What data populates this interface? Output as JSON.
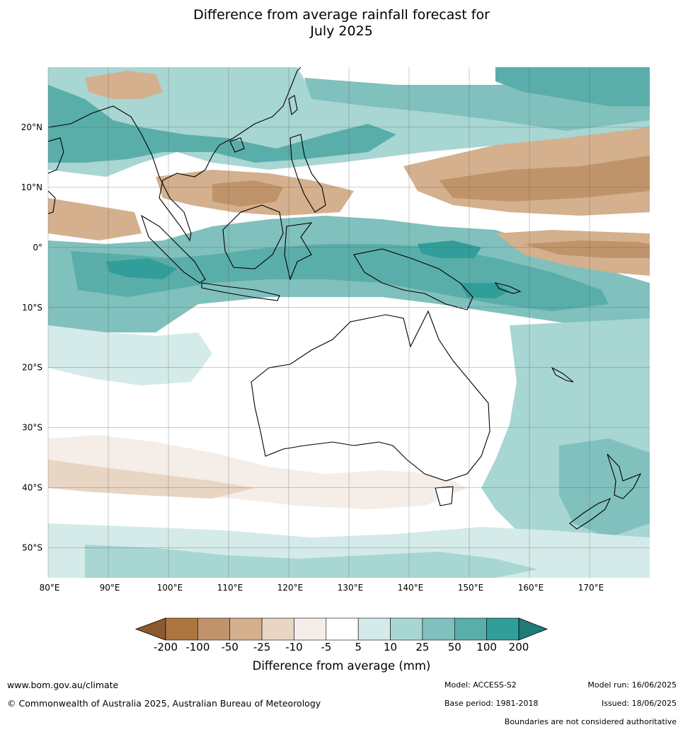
{
  "title": {
    "line1": "Difference from average rainfall forecast for",
    "line2": "July 2025"
  },
  "map": {
    "lat_labels": [
      "20°N",
      "10°N",
      "0°",
      "10°S",
      "20°S",
      "30°S",
      "40°S",
      "50°S"
    ],
    "lon_labels": [
      "80°E",
      "90°E",
      "100°E",
      "110°E",
      "120°E",
      "130°E",
      "140°E",
      "150°E",
      "160°E",
      "170°E"
    ]
  },
  "colorbar": {
    "ticks": [
      "-200",
      "-100",
      "-50",
      "-25",
      "-10",
      "-5",
      "5",
      "10",
      "25",
      "50",
      "100",
      "200"
    ],
    "colors": [
      "#8c5a2c",
      "#ad7540",
      "#c0946a",
      "#d4b08e",
      "#e8d5c3",
      "#f5ede7",
      "#ffffff",
      "#d4ebe9",
      "#a8d6d3",
      "#80c0bd",
      "#5aaeaa",
      "#319e99",
      "#1f7c78"
    ],
    "label": "Difference from average (mm)"
  },
  "footer": {
    "website": "www.bom.gov.au/climate",
    "copyright": "© Commonwealth of Australia 2025, Australian Bureau of Meteorology",
    "model": "Model: ACCESS-S2",
    "base_period": "Base period: 1981-2018",
    "model_run": "Model run: 16/06/2025",
    "issued": "Issued: 18/06/2025",
    "disclaimer": "Boundaries are not considered authoritative"
  }
}
